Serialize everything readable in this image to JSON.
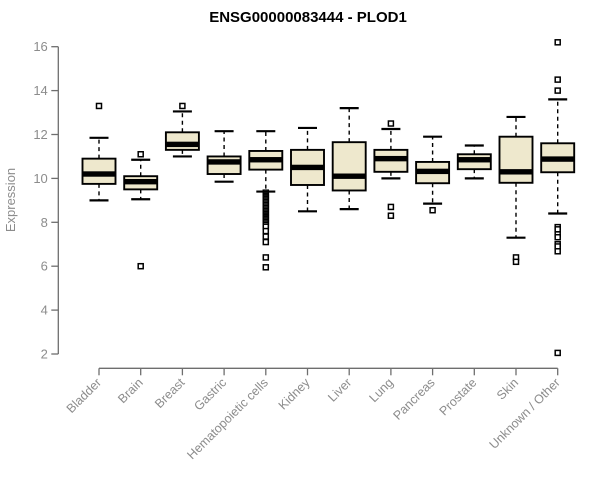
{
  "chart_data": {
    "type": "boxplot",
    "title": "ENSG00000083444 - PLOD1",
    "xlabel": "",
    "ylabel": "Expression",
    "ylim": [
      2,
      16
    ],
    "yticks": [
      2,
      4,
      6,
      8,
      10,
      12,
      14,
      16
    ],
    "grid": false,
    "legend": false,
    "categories": [
      "Bladder",
      "Brain",
      "Breast",
      "Gastric",
      "Hematopoietic cells",
      "Kidney",
      "Liver",
      "Lung",
      "Pancreas",
      "Prostate",
      "Skin",
      "Unknown / Other"
    ],
    "boxes": [
      {
        "category": "Bladder",
        "whisker_low": 9.0,
        "q1": 9.75,
        "median": 10.2,
        "q3": 10.9,
        "whisker_high": 11.85,
        "outliers": [
          13.3
        ]
      },
      {
        "category": "Brain",
        "whisker_low": 9.05,
        "q1": 9.5,
        "median": 9.85,
        "q3": 10.1,
        "whisker_high": 10.85,
        "outliers": [
          11.1,
          6.0
        ]
      },
      {
        "category": "Breast",
        "whisker_low": 11.0,
        "q1": 11.3,
        "median": 11.55,
        "q3": 12.1,
        "whisker_high": 13.05,
        "outliers": [
          13.3
        ]
      },
      {
        "category": "Gastric",
        "whisker_low": 9.85,
        "q1": 10.2,
        "median": 10.75,
        "q3": 11.0,
        "whisker_high": 12.15,
        "outliers": []
      },
      {
        "category": "Hematopoietic cells",
        "whisker_low": 9.4,
        "q1": 10.4,
        "median": 10.85,
        "q3": 11.25,
        "whisker_high": 12.15,
        "outliers": [
          9.35,
          9.28,
          9.21,
          9.14,
          9.07,
          9.0,
          8.93,
          8.86,
          8.79,
          8.72,
          8.65,
          8.58,
          8.51,
          8.44,
          8.37,
          8.3,
          8.23,
          8.16,
          8.09,
          8.02,
          7.95,
          7.88,
          7.8,
          7.6,
          7.35,
          7.1,
          6.4,
          5.95
        ]
      },
      {
        "category": "Kidney",
        "whisker_low": 8.5,
        "q1": 9.7,
        "median": 10.5,
        "q3": 11.3,
        "whisker_high": 12.3,
        "outliers": []
      },
      {
        "category": "Liver",
        "whisker_low": 8.6,
        "q1": 9.45,
        "median": 10.1,
        "q3": 11.65,
        "whisker_high": 13.2,
        "outliers": []
      },
      {
        "category": "Lung",
        "whisker_low": 10.0,
        "q1": 10.3,
        "median": 10.9,
        "q3": 11.3,
        "whisker_high": 12.25,
        "outliers": [
          12.5,
          8.7,
          8.3
        ]
      },
      {
        "category": "Pancreas",
        "whisker_low": 8.85,
        "q1": 9.78,
        "median": 10.32,
        "q3": 10.75,
        "whisker_high": 11.9,
        "outliers": [
          8.55
        ]
      },
      {
        "category": "Prostate",
        "whisker_low": 10.0,
        "q1": 10.42,
        "median": 10.85,
        "q3": 11.1,
        "whisker_high": 11.5,
        "outliers": []
      },
      {
        "category": "Skin",
        "whisker_low": 7.3,
        "q1": 9.8,
        "median": 10.3,
        "q3": 11.9,
        "whisker_high": 12.8,
        "outliers": [
          6.4,
          6.2
        ]
      },
      {
        "category": "Unknown / Other",
        "whisker_low": 8.4,
        "q1": 10.28,
        "median": 10.88,
        "q3": 11.6,
        "whisker_high": 13.6,
        "outliers": [
          16.2,
          14.5,
          14.0,
          7.78,
          7.68,
          7.45,
          7.32,
          7.0,
          6.9,
          6.68,
          2.05
        ]
      }
    ]
  },
  "style": {
    "background": "#ffffff",
    "box_fill": "#EEE8CD",
    "box_stroke": "#000000",
    "median_color": "#000000",
    "whisker_color": "#000000",
    "outlier_stroke": "#000000",
    "outlier_fill": "#ffffff",
    "axis_color": "#6e6e6e",
    "tick_label_color": "#8c8c8c",
    "title_color": "#000000"
  }
}
